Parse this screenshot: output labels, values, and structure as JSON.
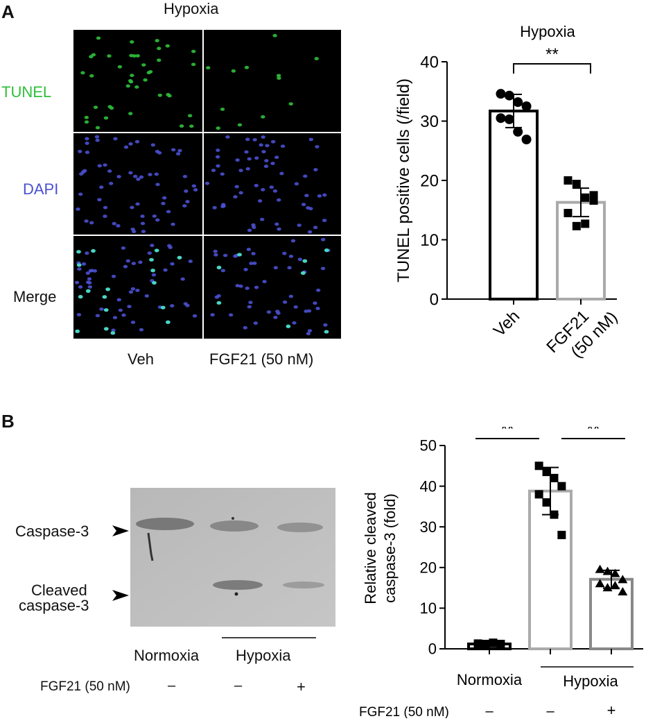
{
  "panel_a": {
    "letter": "A",
    "micro_title": "Hypoxia",
    "row_labels": [
      "TUNEL",
      "DAPI",
      "Merge"
    ],
    "col_labels": [
      "Veh",
      "FGF21 (50 nM)"
    ],
    "colors": {
      "tunel": "#2fbf3a",
      "dapi": "#4a50d0",
      "merge": "#49d6c4"
    }
  },
  "panel_b": {
    "letter": "B",
    "band_labels": [
      "Caspase-3",
      "Cleaved\ncaspase-3"
    ],
    "band_label_1": "Caspase-3",
    "band_label_2a": "Cleaved",
    "band_label_2b": "caspase-3",
    "blot_groups": {
      "normoxia": "Normoxia",
      "hypoxia": "Hypoxia"
    },
    "fgf21_row": {
      "label": "FGF21 (50 nM)",
      "signs": [
        "–",
        "–",
        "+"
      ]
    }
  },
  "chart_data": [
    {
      "type": "bar",
      "title": "Hypoxia",
      "ylabel": "TUNEL positive cells (/field)",
      "ylim": [
        0,
        40
      ],
      "yticks": [
        "0",
        "10",
        "20",
        "30",
        "40"
      ],
      "categories": [
        "Veh",
        "FGF21\n(50 nM)"
      ],
      "category_lines": [
        [
          "Veh"
        ],
        [
          "FGF21",
          "(50 nM)"
        ]
      ],
      "values": [
        31.7,
        16.3
      ],
      "errors": [
        2.8,
        2.4
      ],
      "bar_colors": [
        "#000000",
        "#aaaaaa"
      ],
      "points": [
        [
          34.6,
          34.3,
          33.2,
          32.5,
          30.5,
          30.3,
          28.2,
          26.9
        ],
        [
          20.0,
          19.4,
          17.1,
          16.6,
          14.5,
          12.3,
          12.7,
          17.5
        ]
      ],
      "significance": [
        {
          "from": 0,
          "to": 1,
          "label": "**"
        }
      ]
    },
    {
      "type": "bar",
      "ylabel": "Relative cleaved caspase-3 (fold)",
      "ylabel_lines": [
        "Relative cleaved",
        "caspase-3 (fold)"
      ],
      "ylim": [
        0,
        50
      ],
      "yticks": [
        "0",
        "10",
        "20",
        "30",
        "40",
        "50"
      ],
      "categories": [
        "Normoxia",
        "Hypoxia",
        "Hypoxia"
      ],
      "group_labels": {
        "normoxia": "Normoxia",
        "hypoxia": "Hypoxia"
      },
      "fgf21_label": "FGF21 (50 nM)",
      "fgf21_signs": [
        "–",
        "–",
        "+"
      ],
      "values": [
        1.2,
        38.8,
        17.1
      ],
      "errors": [
        0.3,
        5.8,
        2.2
      ],
      "bar_colors": [
        "#000000",
        "#aaaaaa",
        "#888888"
      ],
      "points": [
        [
          1.0,
          1.2,
          1.4,
          1.1,
          1.3,
          1.0,
          1.5,
          1.2
        ],
        [
          45.0,
          43.5,
          42.0,
          40.0,
          38.0,
          36.0,
          33.0,
          28.0
        ],
        [
          19.5,
          19.0,
          18.5,
          17.0,
          16.0,
          15.0,
          15.5,
          14.0
        ]
      ],
      "significance": [
        {
          "from": 0,
          "to": 1,
          "label": "**"
        },
        {
          "from": 1,
          "to": 2,
          "label": "**"
        }
      ]
    }
  ]
}
